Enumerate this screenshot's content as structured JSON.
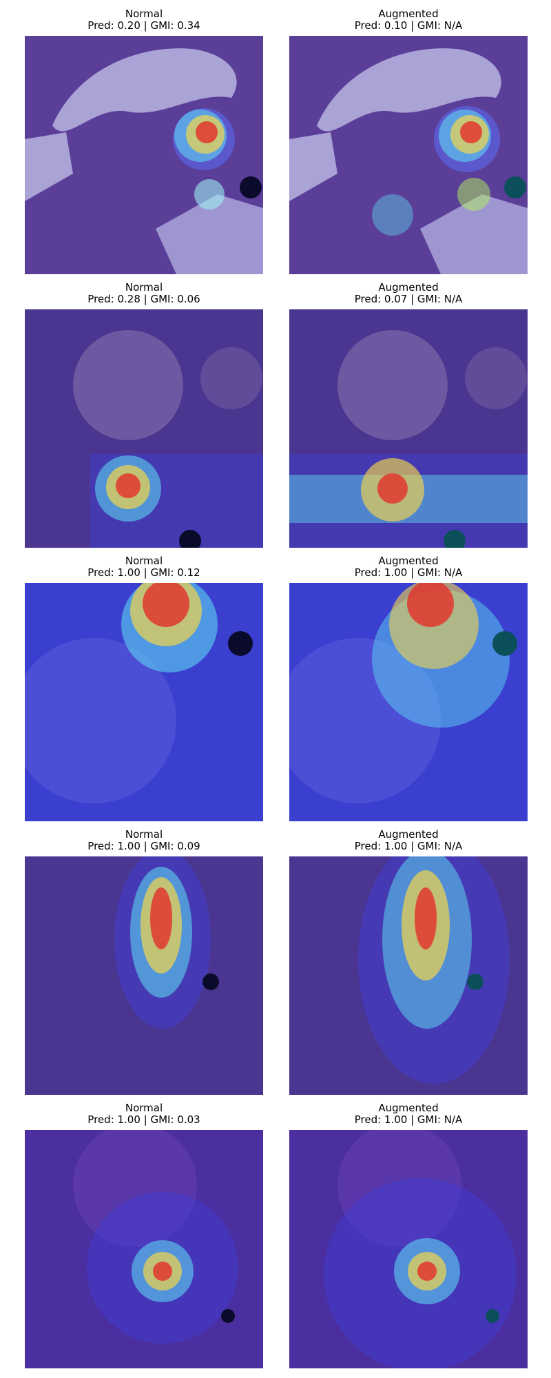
{
  "figure": {
    "rows": [
      {
        "normal": {
          "title": "Normal",
          "caption": "Pred: 0.20 | GMI: 0.34"
        },
        "augmented": {
          "title": "Augmented",
          "caption": "Pred: 0.10 | GMI: N/A"
        }
      },
      {
        "normal": {
          "title": "Normal",
          "caption": "Pred: 0.28 | GMI: 0.06"
        },
        "augmented": {
          "title": "Augmented",
          "caption": "Pred: 0.07 | GMI: N/A"
        }
      },
      {
        "normal": {
          "title": "Normal",
          "caption": "Pred: 1.00 | GMI: 0.12"
        },
        "augmented": {
          "title": "Augmented",
          "caption": "Pred: 1.00 | GMI: N/A"
        }
      },
      {
        "normal": {
          "title": "Normal",
          "caption": "Pred: 1.00 | GMI: 0.09"
        },
        "augmented": {
          "title": "Augmented",
          "caption": "Pred: 1.00 | GMI: N/A"
        }
      },
      {
        "normal": {
          "title": "Normal",
          "caption": "Pred: 1.00 | GMI: 0.03"
        },
        "augmented": {
          "title": "Augmented",
          "caption": "Pred: 1.00 | GMI: N/A"
        }
      }
    ]
  },
  "colors": {
    "tissue_base": "#5b3f9a",
    "tissue_dark": "#2c1f6b",
    "background_lavender": "#a9a3d6",
    "heat_low": "#3a3ad8",
    "heat_mid_cyan": "#57e0ff",
    "heat_mid_yellow": "#f6e24a",
    "heat_high": "#e0342c",
    "marker_dark": "#0a0a2a",
    "marker_teal": "#0b4f5a"
  }
}
